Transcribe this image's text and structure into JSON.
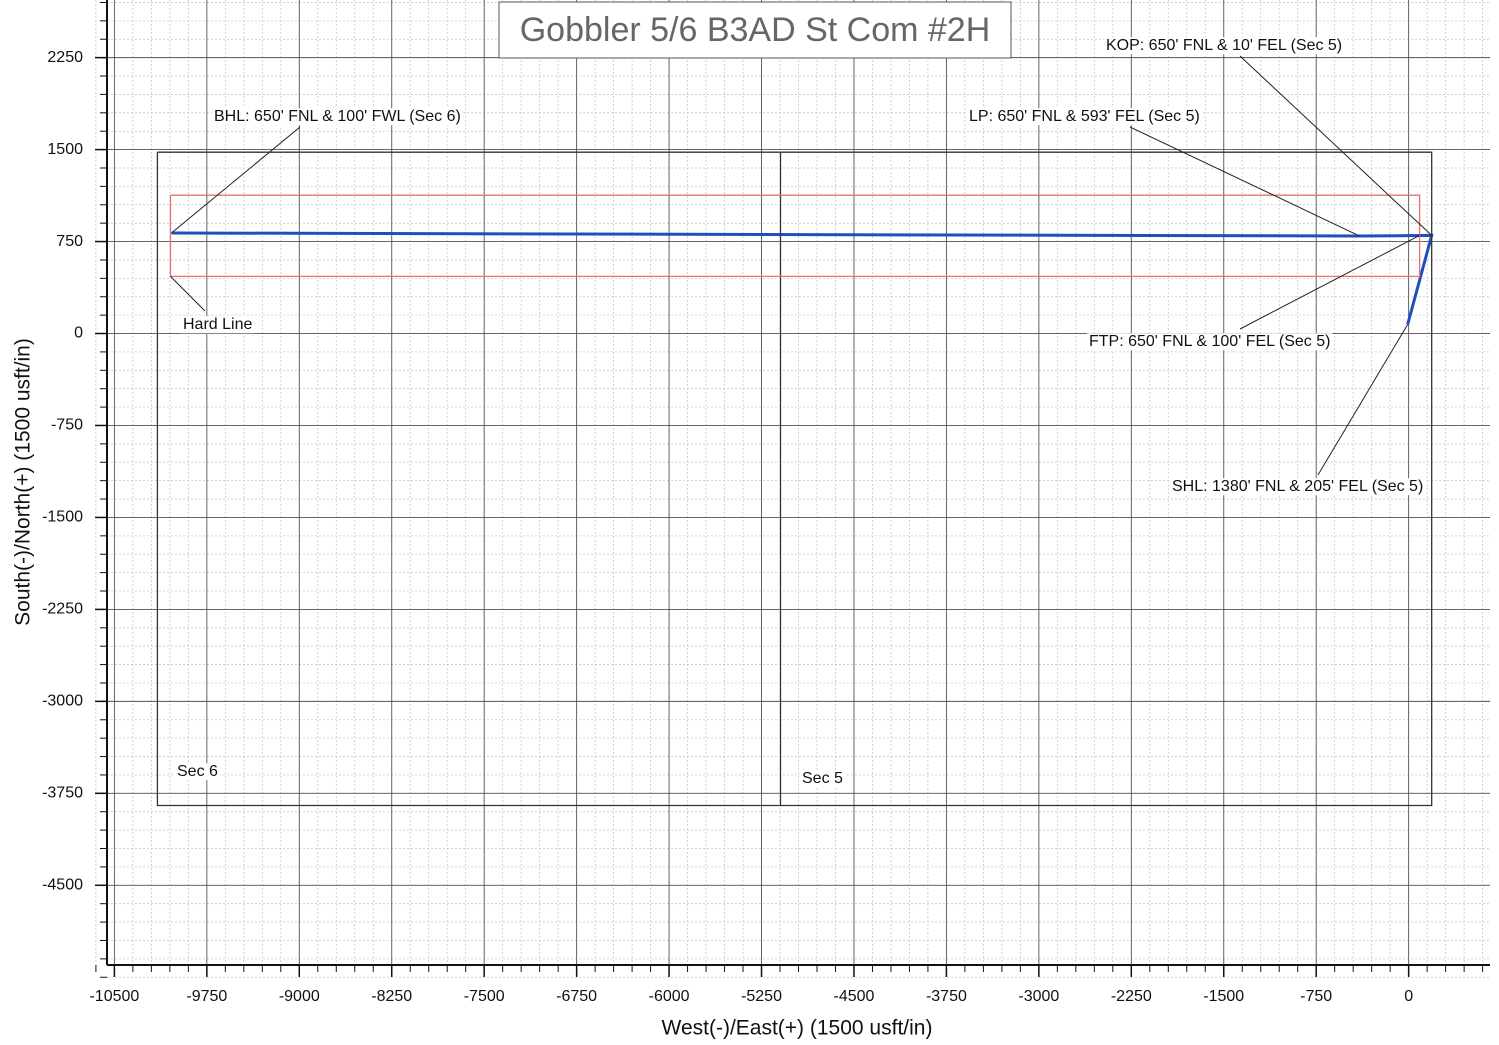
{
  "chart_data": {
    "type": "line",
    "title": "Gobbler 5/6 B3AD St Com #2H",
    "x_label": "West(-)/East(+) (1500 usft/in)",
    "y_label": "South(-)/North(+) (1500 usft/in)",
    "xlim": [
      -10560,
      660
    ],
    "ylim": [
      -5150,
      2720
    ],
    "xticks": [
      -10500,
      -9750,
      -9000,
      -8250,
      -7500,
      -6750,
      -6000,
      -5250,
      -4500,
      -3750,
      -3000,
      -2250,
      -1500,
      -750,
      0
    ],
    "yticks": [
      2250,
      1500,
      750,
      0,
      -750,
      -1500,
      -2250,
      -3000,
      -3750,
      -4500
    ],
    "grid": true,
    "series": [
      {
        "color": "#1f4fbf",
        "x": [
          -8,
          187,
          -398,
          -10037
        ],
        "y": [
          74,
          800,
          795,
          820
        ]
      },
      {
        "color": "#333333",
        "x": [
          -10151,
          187,
          187,
          -10151,
          -10151
        ],
        "y": [
          1479,
          1479,
          -3849,
          -3849,
          1479
        ]
      },
      {
        "color": "#333333",
        "x": [
          -5096,
          -5096
        ],
        "y": [
          1479,
          -3849
        ]
      },
      {
        "color": "#e87070",
        "x": [
          -10045,
          89,
          89,
          -10045,
          -10045
        ],
        "y": [
          1128,
          1128,
          466,
          466,
          1128
        ]
      }
    ],
    "annotations": [
      {
        "text": "KOP: 650' FNL & 10' FEL (Sec 5)",
        "x": 187,
        "y": 800
      },
      {
        "text": "LP: 650' FNL & 593' FEL (Sec 5)",
        "x": -398,
        "y": 795
      },
      {
        "text": "BHL: 650' FNL & 100' FWL (Sec 6)",
        "x": -10037,
        "y": 820
      },
      {
        "text": "Hard Line",
        "x": -10045,
        "y": 466
      },
      {
        "text": "FTP: 650' FNL & 100' FEL (Sec 5)",
        "x": 89,
        "y": 800
      },
      {
        "text": "SHL: 1380' FNL & 205' FEL (Sec 5)",
        "x": -8,
        "y": 74
      }
    ],
    "labels": [
      "Sec 6",
      "Sec 5"
    ]
  }
}
